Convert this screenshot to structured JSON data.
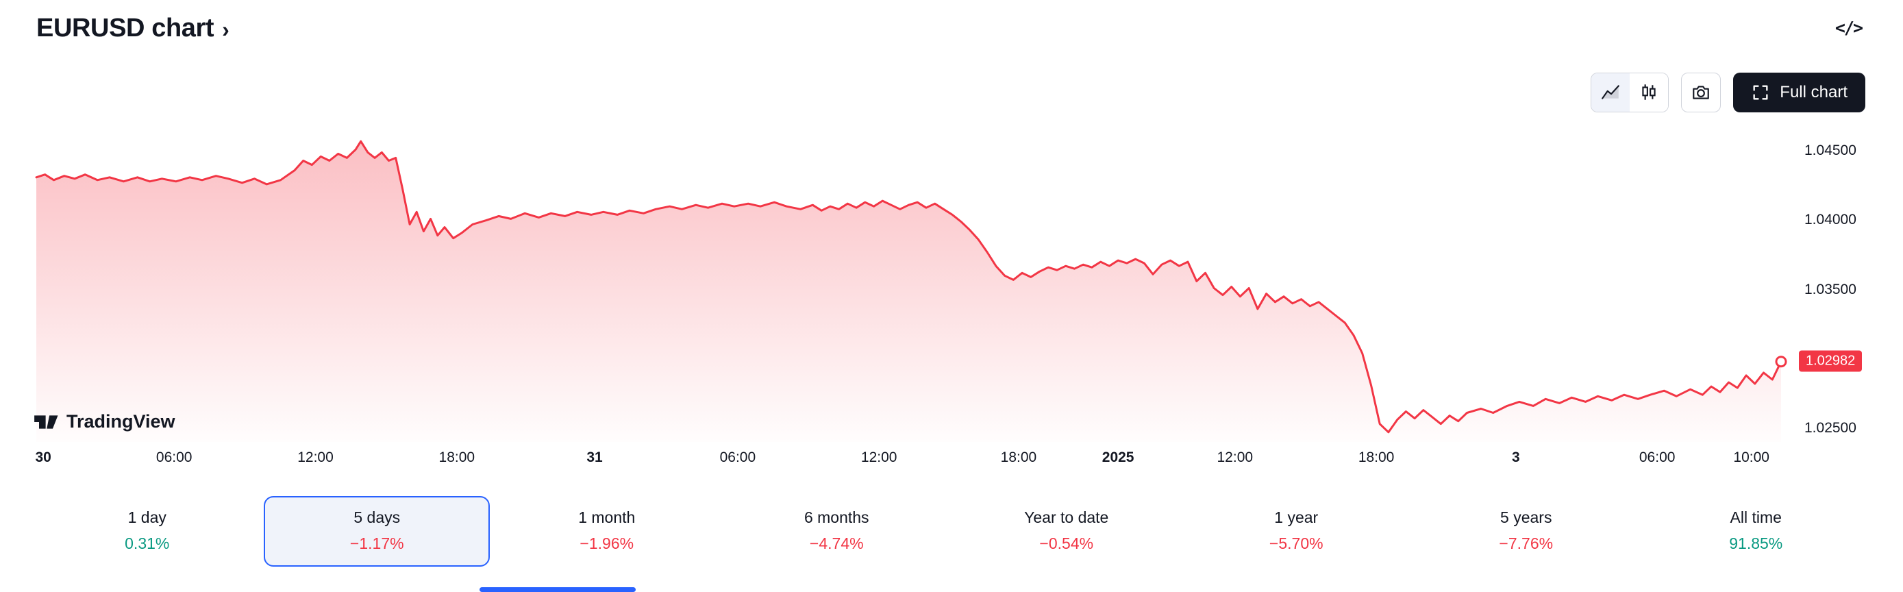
{
  "header": {
    "title": "EURUSD chart",
    "chevron": "›",
    "embed_icon": "</>"
  },
  "toolbar": {
    "full_chart_label": "Full chart"
  },
  "watermark": {
    "brand": "TradingView"
  },
  "price_axis": {
    "labels": [
      {
        "text": "1.04500",
        "value": 1.045
      },
      {
        "text": "1.04000",
        "value": 1.04
      },
      {
        "text": "1.03500",
        "value": 1.035
      },
      {
        "text": "1.02500",
        "value": 1.025
      }
    ],
    "last_price_badge": {
      "text": "1.02982",
      "value": 1.02982
    }
  },
  "chart_data": {
    "type": "area",
    "symbol": "EURUSD",
    "period": "5 days",
    "line_color": "#F23645",
    "ylim": [
      1.024,
      1.0465
    ],
    "grid": false,
    "x_ticks": [
      {
        "label": "30",
        "pos": 0.004,
        "bold": true
      },
      {
        "label": "06:00",
        "pos": 0.079,
        "bold": false
      },
      {
        "label": "12:00",
        "pos": 0.16,
        "bold": false
      },
      {
        "label": "18:00",
        "pos": 0.241,
        "bold": false
      },
      {
        "label": "31",
        "pos": 0.32,
        "bold": true
      },
      {
        "label": "06:00",
        "pos": 0.402,
        "bold": false
      },
      {
        "label": "12:00",
        "pos": 0.483,
        "bold": false
      },
      {
        "label": "18:00",
        "pos": 0.563,
        "bold": false
      },
      {
        "label": "2025",
        "pos": 0.62,
        "bold": true
      },
      {
        "label": "12:00",
        "pos": 0.687,
        "bold": false
      },
      {
        "label": "18:00",
        "pos": 0.768,
        "bold": false
      },
      {
        "label": "3",
        "pos": 0.848,
        "bold": true
      },
      {
        "label": "06:00",
        "pos": 0.929,
        "bold": false
      },
      {
        "label": "10:00",
        "pos": 0.983,
        "bold": false
      }
    ],
    "points": [
      [
        0.0,
        1.0431
      ],
      [
        0.005,
        1.0433
      ],
      [
        0.01,
        1.0429
      ],
      [
        0.016,
        1.0432
      ],
      [
        0.022,
        1.043
      ],
      [
        0.028,
        1.0433
      ],
      [
        0.035,
        1.0429
      ],
      [
        0.042,
        1.0431
      ],
      [
        0.05,
        1.0428
      ],
      [
        0.058,
        1.0431
      ],
      [
        0.065,
        1.0428
      ],
      [
        0.072,
        1.043
      ],
      [
        0.08,
        1.0428
      ],
      [
        0.088,
        1.0431
      ],
      [
        0.095,
        1.0429
      ],
      [
        0.103,
        1.0432
      ],
      [
        0.11,
        1.043
      ],
      [
        0.118,
        1.0427
      ],
      [
        0.125,
        1.043
      ],
      [
        0.132,
        1.0426
      ],
      [
        0.14,
        1.0429
      ],
      [
        0.148,
        1.0436
      ],
      [
        0.153,
        1.0443
      ],
      [
        0.158,
        1.044
      ],
      [
        0.163,
        1.0446
      ],
      [
        0.168,
        1.0443
      ],
      [
        0.173,
        1.0448
      ],
      [
        0.178,
        1.0445
      ],
      [
        0.183,
        1.0451
      ],
      [
        0.186,
        1.0457
      ],
      [
        0.19,
        1.0449
      ],
      [
        0.194,
        1.0445
      ],
      [
        0.198,
        1.0449
      ],
      [
        0.202,
        1.0443
      ],
      [
        0.206,
        1.0445
      ],
      [
        0.21,
        1.0422
      ],
      [
        0.214,
        1.0397
      ],
      [
        0.218,
        1.0406
      ],
      [
        0.222,
        1.0392
      ],
      [
        0.226,
        1.0401
      ],
      [
        0.23,
        1.0389
      ],
      [
        0.234,
        1.0395
      ],
      [
        0.239,
        1.0387
      ],
      [
        0.244,
        1.0391
      ],
      [
        0.25,
        1.0397
      ],
      [
        0.258,
        1.04
      ],
      [
        0.265,
        1.0403
      ],
      [
        0.272,
        1.0401
      ],
      [
        0.28,
        1.0405
      ],
      [
        0.288,
        1.0402
      ],
      [
        0.295,
        1.0405
      ],
      [
        0.303,
        1.0403
      ],
      [
        0.31,
        1.0406
      ],
      [
        0.318,
        1.0404
      ],
      [
        0.325,
        1.0406
      ],
      [
        0.333,
        1.0404
      ],
      [
        0.34,
        1.0407
      ],
      [
        0.348,
        1.0405
      ],
      [
        0.355,
        1.0408
      ],
      [
        0.363,
        1.041
      ],
      [
        0.37,
        1.0408
      ],
      [
        0.378,
        1.0411
      ],
      [
        0.385,
        1.0409
      ],
      [
        0.393,
        1.0412
      ],
      [
        0.4,
        1.041
      ],
      [
        0.408,
        1.0412
      ],
      [
        0.415,
        1.041
      ],
      [
        0.423,
        1.0413
      ],
      [
        0.43,
        1.041
      ],
      [
        0.438,
        1.0408
      ],
      [
        0.445,
        1.0411
      ],
      [
        0.45,
        1.0407
      ],
      [
        0.455,
        1.041
      ],
      [
        0.46,
        1.0408
      ],
      [
        0.465,
        1.0412
      ],
      [
        0.47,
        1.0409
      ],
      [
        0.475,
        1.0413
      ],
      [
        0.48,
        1.041
      ],
      [
        0.485,
        1.0414
      ],
      [
        0.49,
        1.0411
      ],
      [
        0.495,
        1.0408
      ],
      [
        0.5,
        1.0411
      ],
      [
        0.505,
        1.0413
      ],
      [
        0.51,
        1.0409
      ],
      [
        0.515,
        1.0412
      ],
      [
        0.52,
        1.0408
      ],
      [
        0.525,
        1.0404
      ],
      [
        0.53,
        1.0399
      ],
      [
        0.535,
        1.0393
      ],
      [
        0.54,
        1.0386
      ],
      [
        0.545,
        1.0377
      ],
      [
        0.55,
        1.0367
      ],
      [
        0.555,
        1.036
      ],
      [
        0.56,
        1.0357
      ],
      [
        0.565,
        1.0362
      ],
      [
        0.57,
        1.0359
      ],
      [
        0.575,
        1.0363
      ],
      [
        0.58,
        1.0366
      ],
      [
        0.585,
        1.0364
      ],
      [
        0.59,
        1.0367
      ],
      [
        0.595,
        1.0365
      ],
      [
        0.6,
        1.0368
      ],
      [
        0.605,
        1.0366
      ],
      [
        0.61,
        1.037
      ],
      [
        0.615,
        1.0367
      ],
      [
        0.62,
        1.0371
      ],
      [
        0.625,
        1.0369
      ],
      [
        0.63,
        1.0372
      ],
      [
        0.635,
        1.0369
      ],
      [
        0.64,
        1.0361
      ],
      [
        0.645,
        1.0368
      ],
      [
        0.65,
        1.0371
      ],
      [
        0.655,
        1.0367
      ],
      [
        0.66,
        1.037
      ],
      [
        0.665,
        1.0356
      ],
      [
        0.67,
        1.0362
      ],
      [
        0.675,
        1.0351
      ],
      [
        0.68,
        1.0346
      ],
      [
        0.685,
        1.0352
      ],
      [
        0.69,
        1.0345
      ],
      [
        0.695,
        1.0351
      ],
      [
        0.7,
        1.0336
      ],
      [
        0.705,
        1.0347
      ],
      [
        0.71,
        1.0341
      ],
      [
        0.715,
        1.0345
      ],
      [
        0.72,
        1.034
      ],
      [
        0.725,
        1.0343
      ],
      [
        0.73,
        1.0338
      ],
      [
        0.735,
        1.0341
      ],
      [
        0.74,
        1.0336
      ],
      [
        0.745,
        1.0331
      ],
      [
        0.75,
        1.0326
      ],
      [
        0.755,
        1.0317
      ],
      [
        0.76,
        1.0304
      ],
      [
        0.765,
        1.0281
      ],
      [
        0.77,
        1.0253
      ],
      [
        0.775,
        1.0247
      ],
      [
        0.78,
        1.0256
      ],
      [
        0.785,
        1.0262
      ],
      [
        0.79,
        1.0257
      ],
      [
        0.795,
        1.0263
      ],
      [
        0.8,
        1.0258
      ],
      [
        0.805,
        1.0253
      ],
      [
        0.81,
        1.0259
      ],
      [
        0.815,
        1.0255
      ],
      [
        0.82,
        1.0261
      ],
      [
        0.828,
        1.0264
      ],
      [
        0.835,
        1.0261
      ],
      [
        0.843,
        1.0266
      ],
      [
        0.85,
        1.0269
      ],
      [
        0.858,
        1.0266
      ],
      [
        0.865,
        1.0271
      ],
      [
        0.873,
        1.0268
      ],
      [
        0.88,
        1.0272
      ],
      [
        0.888,
        1.0269
      ],
      [
        0.895,
        1.0273
      ],
      [
        0.903,
        1.027
      ],
      [
        0.91,
        1.0274
      ],
      [
        0.918,
        1.0271
      ],
      [
        0.925,
        1.0274
      ],
      [
        0.933,
        1.0277
      ],
      [
        0.94,
        1.0273
      ],
      [
        0.948,
        1.0278
      ],
      [
        0.955,
        1.0274
      ],
      [
        0.96,
        1.028
      ],
      [
        0.965,
        1.0276
      ],
      [
        0.97,
        1.0283
      ],
      [
        0.975,
        1.0279
      ],
      [
        0.98,
        1.0288
      ],
      [
        0.985,
        1.0282
      ],
      [
        0.99,
        1.029
      ],
      [
        0.995,
        1.0285
      ],
      [
        1.0,
        1.0298
      ]
    ]
  },
  "ranges": [
    {
      "label": "1 day",
      "change": "0.31%",
      "direction": "up",
      "selected": false
    },
    {
      "label": "5 days",
      "change": "−1.17%",
      "direction": "down",
      "selected": true
    },
    {
      "label": "1 month",
      "change": "−1.96%",
      "direction": "down",
      "selected": false
    },
    {
      "label": "6 months",
      "change": "−4.74%",
      "direction": "down",
      "selected": false
    },
    {
      "label": "Year to date",
      "change": "−0.54%",
      "direction": "down",
      "selected": false
    },
    {
      "label": "1 year",
      "change": "−5.70%",
      "direction": "down",
      "selected": false
    },
    {
      "label": "5 years",
      "change": "−7.76%",
      "direction": "down",
      "selected": false
    },
    {
      "label": "All time",
      "change": "91.85%",
      "direction": "up",
      "selected": false
    }
  ],
  "colors": {
    "up": "#089981",
    "down": "#F23645",
    "accent": "#2962FF",
    "text": "#131722"
  }
}
